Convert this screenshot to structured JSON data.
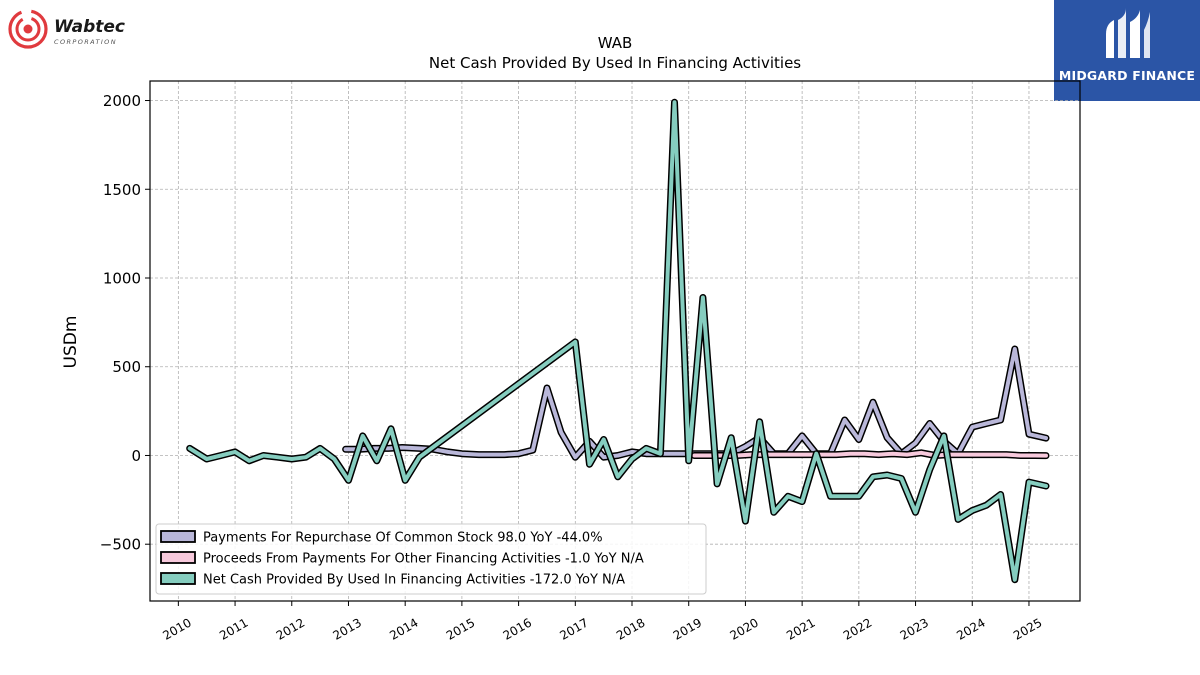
{
  "logos": {
    "left_name": "Wabtec",
    "left_sub": "CORPORATION",
    "right_name": "MIDGARD FINANCE"
  },
  "colors": {
    "repurchase": "#b9b7d9",
    "other": "#f7c9dc",
    "net": "#85cdbf",
    "outline": "#000000",
    "grid": "#b0b0b0",
    "brand_blue": "#2b55a6",
    "brand_red": "#e03a3e"
  },
  "chart_data": {
    "type": "line",
    "title": "WAB",
    "subtitle": "Net Cash Provided By Used In Financing Activities",
    "ylabel": "USDm",
    "xlabel": "",
    "xlim": [
      2009.5,
      2025.9
    ],
    "ylim": [
      -820,
      2110
    ],
    "yticks": [
      -500,
      0,
      500,
      1000,
      1500,
      2000
    ],
    "ytick_labels": [
      "−500",
      "0",
      "500",
      "1000",
      "1500",
      "2000"
    ],
    "xticks": [
      2010,
      2011,
      2012,
      2013,
      2014,
      2015,
      2016,
      2017,
      2018,
      2019,
      2020,
      2021,
      2022,
      2023,
      2024,
      2025
    ],
    "xtick_labels": [
      "2010",
      "2011",
      "2012",
      "2013",
      "2014",
      "2015",
      "2016",
      "2017",
      "2018",
      "2019",
      "2020",
      "2021",
      "2022",
      "2023",
      "2024",
      "2025"
    ],
    "grid": true,
    "legend_position": "lower-left",
    "series": [
      {
        "name": "Payments For Repurchase Of Common Stock  98.0 YoY -44.0%",
        "key": "repurchase",
        "x": [
          2012.95,
          2013.2,
          2013.45,
          2013.7,
          2013.95,
          2014.25,
          2014.5,
          2014.75,
          2015.0,
          2015.3,
          2015.55,
          2015.75,
          2016.0,
          2016.25,
          2016.5,
          2016.75,
          2017.0,
          2017.25,
          2017.5,
          2017.75,
          2018.0,
          2018.25,
          2018.5,
          2018.75,
          2019.0,
          2019.25,
          2019.5,
          2019.75,
          2020.0,
          2020.25,
          2020.5,
          2020.75,
          2021.0,
          2021.25,
          2021.5,
          2021.75,
          2022.0,
          2022.25,
          2022.5,
          2022.75,
          2023.0,
          2023.25,
          2023.5,
          2023.75,
          2024.0,
          2024.25,
          2024.5,
          2024.75,
          2025.0,
          2025.3
        ],
        "y": [
          35,
          35,
          40,
          40,
          45,
          40,
          35,
          20,
          10,
          5,
          5,
          5,
          10,
          30,
          380,
          130,
          -10,
          80,
          -10,
          0,
          20,
          10,
          10,
          10,
          10,
          10,
          10,
          10,
          50,
          100,
          10,
          10,
          110,
          10,
          10,
          200,
          90,
          300,
          100,
          10,
          70,
          180,
          80,
          10,
          160,
          180,
          200,
          600,
          120,
          98
        ]
      },
      {
        "name": "Proceeds From Payments For Other Financing Activities  -1.0 YoY N/A",
        "key": "other",
        "x": [
          2019.1,
          2019.35,
          2019.6,
          2019.85,
          2020.1,
          2020.35,
          2020.6,
          2020.85,
          2021.1,
          2021.35,
          2021.6,
          2021.85,
          2022.1,
          2022.35,
          2022.6,
          2022.85,
          2023.1,
          2023.35,
          2023.6,
          2023.85,
          2024.1,
          2024.35,
          2024.6,
          2024.85,
          2025.1,
          2025.3
        ],
        "y": [
          0,
          0,
          0,
          0,
          5,
          5,
          5,
          5,
          5,
          5,
          5,
          10,
          10,
          5,
          10,
          5,
          15,
          0,
          5,
          5,
          5,
          5,
          5,
          0,
          0,
          -1
        ]
      },
      {
        "name": "Net Cash Provided By Used In Financing Activities  -172.0 YoY N/A",
        "key": "net",
        "x": [
          2010.2,
          2010.5,
          2010.75,
          2011.0,
          2011.25,
          2011.5,
          2011.75,
          2012.0,
          2012.25,
          2012.5,
          2012.75,
          2013.0,
          2013.25,
          2013.5,
          2013.75,
          2014.0,
          2014.25,
          2017.0,
          2017.25,
          2017.5,
          2017.75,
          2018.0,
          2018.25,
          2018.5,
          2018.75,
          2019.0,
          2019.25,
          2019.5,
          2019.75,
          2020.0,
          2020.25,
          2020.5,
          2020.75,
          2021.0,
          2021.25,
          2021.5,
          2021.75,
          2022.0,
          2022.25,
          2022.5,
          2022.75,
          2023.0,
          2023.25,
          2023.5,
          2023.75,
          2024.0,
          2024.25,
          2024.5,
          2024.75,
          2025.0,
          2025.3
        ],
        "y": [
          40,
          -20,
          0,
          20,
          -30,
          0,
          -10,
          -20,
          -10,
          40,
          -20,
          -140,
          110,
          -30,
          150,
          -140,
          -10,
          640,
          -50,
          90,
          -120,
          -20,
          40,
          10,
          1990,
          -30,
          890,
          -160,
          100,
          -370,
          190,
          -320,
          -230,
          -260,
          10,
          -230,
          -230,
          -230,
          -120,
          -110,
          -130,
          -320,
          -80,
          110,
          -360,
          -310,
          -280,
          -220,
          -700,
          -150,
          -172
        ]
      }
    ]
  }
}
